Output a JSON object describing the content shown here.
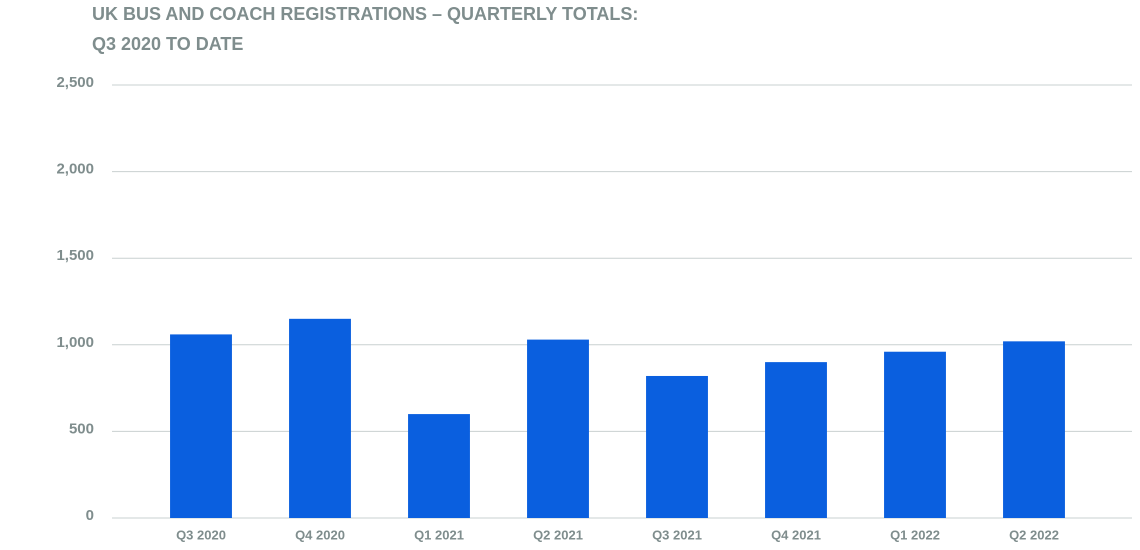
{
  "chart_data": {
    "type": "bar",
    "title": [
      "UK BUS AND COACH REGISTRATIONS – QUARTERLY TOTALS:",
      "Q3 2020 TO DATE"
    ],
    "categories": [
      "Q3 2020",
      "Q4 2020",
      "Q1 2021",
      "Q2 2021",
      "Q3 2021",
      "Q4 2021",
      "Q1 2022",
      "Q2 2022"
    ],
    "values": [
      1060,
      1150,
      600,
      1030,
      820,
      900,
      960,
      1020
    ],
    "color": "#0a5fdf",
    "ylim": [
      0,
      2500
    ],
    "yticks": [
      0,
      500,
      {
        "value": 1000,
        "label": "1,000"
      },
      {
        "value": 1500,
        "label": "1,500"
      },
      {
        "value": 2000,
        "label": "2,000"
      },
      {
        "value": 2500,
        "label": "2,500"
      }
    ],
    "grid": true
  }
}
